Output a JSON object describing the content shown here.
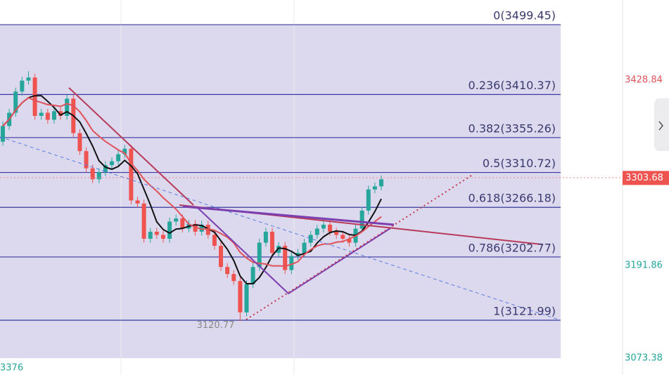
{
  "chart_data": {
    "type": "candlestick",
    "ylim": [
      3052,
      3531
    ],
    "up_color": "#26a69a",
    "down_color": "#ef5350",
    "fib_levels": [
      {
        "label": "0(3499.45)",
        "value": 3499.45
      },
      {
        "label": "0.236(3410.37)",
        "value": 3410.37
      },
      {
        "label": "0.382(3355.26)",
        "value": 3355.26
      },
      {
        "label": "0.5(3310.72)",
        "value": 3310.72
      },
      {
        "label": "0.618(3266.18)",
        "value": 3266.18
      },
      {
        "label": "0.786(3202.77)",
        "value": 3202.77
      },
      {
        "label": "1(3121.99)",
        "value": 3121.99
      }
    ],
    "price_labels": [
      {
        "value": 3428.84,
        "color": "#e0525a"
      },
      {
        "value": 3191.86,
        "color": "#26a69a"
      },
      {
        "value": 3073.38,
        "color": "#26a69a"
      }
    ],
    "current_price": 3303.68,
    "low_label": 3120.77,
    "corner_text": "3376",
    "open": [
      3350,
      3370,
      3387,
      3414,
      3428,
      3432,
      3383,
      3387,
      3378,
      3389,
      3383,
      3405,
      3361,
      3338,
      3316,
      3302,
      3311,
      3320,
      3325,
      3334,
      3341,
      3275,
      3271,
      3226,
      3235,
      3231,
      3226,
      3248,
      3252,
      3239,
      3245,
      3235,
      3244,
      3231,
      3217,
      3190,
      3181,
      3172,
      3132,
      3168,
      3190,
      3221,
      3235,
      3208,
      3217,
      3186,
      3204,
      3208,
      3221,
      3231,
      3239,
      3244,
      3235,
      3231,
      3226,
      3221,
      3239,
      3262,
      3289,
      3293
    ],
    "high": [
      3376,
      3392,
      3419,
      3433,
      3440,
      3437,
      3392,
      3392,
      3393,
      3394,
      3410,
      3410,
      3366,
      3343,
      3321,
      3316,
      3325,
      3330,
      3339,
      3346,
      3346,
      3280,
      3276,
      3240,
      3240,
      3236,
      3253,
      3257,
      3257,
      3250,
      3250,
      3249,
      3249,
      3236,
      3222,
      3195,
      3186,
      3177,
      3173,
      3195,
      3226,
      3240,
      3240,
      3222,
      3222,
      3209,
      3213,
      3226,
      3236,
      3244,
      3249,
      3249,
      3240,
      3236,
      3231,
      3244,
      3267,
      3294,
      3298,
      3307
    ],
    "low": [
      3345,
      3365,
      3382,
      3409,
      3423,
      3378,
      3378,
      3373,
      3373,
      3378,
      3378,
      3356,
      3333,
      3311,
      3297,
      3297,
      3306,
      3315,
      3320,
      3329,
      3270,
      3266,
      3221,
      3221,
      3226,
      3221,
      3221,
      3243,
      3234,
      3234,
      3230,
      3230,
      3226,
      3212,
      3185,
      3176,
      3167,
      3120.77,
      3127,
      3163,
      3185,
      3216,
      3203,
      3203,
      3181,
      3181,
      3199,
      3203,
      3216,
      3226,
      3234,
      3230,
      3226,
      3221,
      3216,
      3216,
      3234,
      3257,
      3284,
      3288
    ],
    "close": [
      3370,
      3387,
      3414,
      3428,
      3432,
      3383,
      3387,
      3378,
      3389,
      3383,
      3405,
      3361,
      3338,
      3316,
      3302,
      3311,
      3320,
      3325,
      3334,
      3341,
      3275,
      3271,
      3226,
      3235,
      3231,
      3226,
      3248,
      3252,
      3239,
      3245,
      3235,
      3244,
      3231,
      3217,
      3190,
      3181,
      3172,
      3132,
      3168,
      3190,
      3221,
      3235,
      3208,
      3217,
      3186,
      3204,
      3208,
      3221,
      3231,
      3239,
      3244,
      3235,
      3231,
      3226,
      3221,
      3239,
      3262,
      3289,
      3293,
      3302
    ]
  }
}
